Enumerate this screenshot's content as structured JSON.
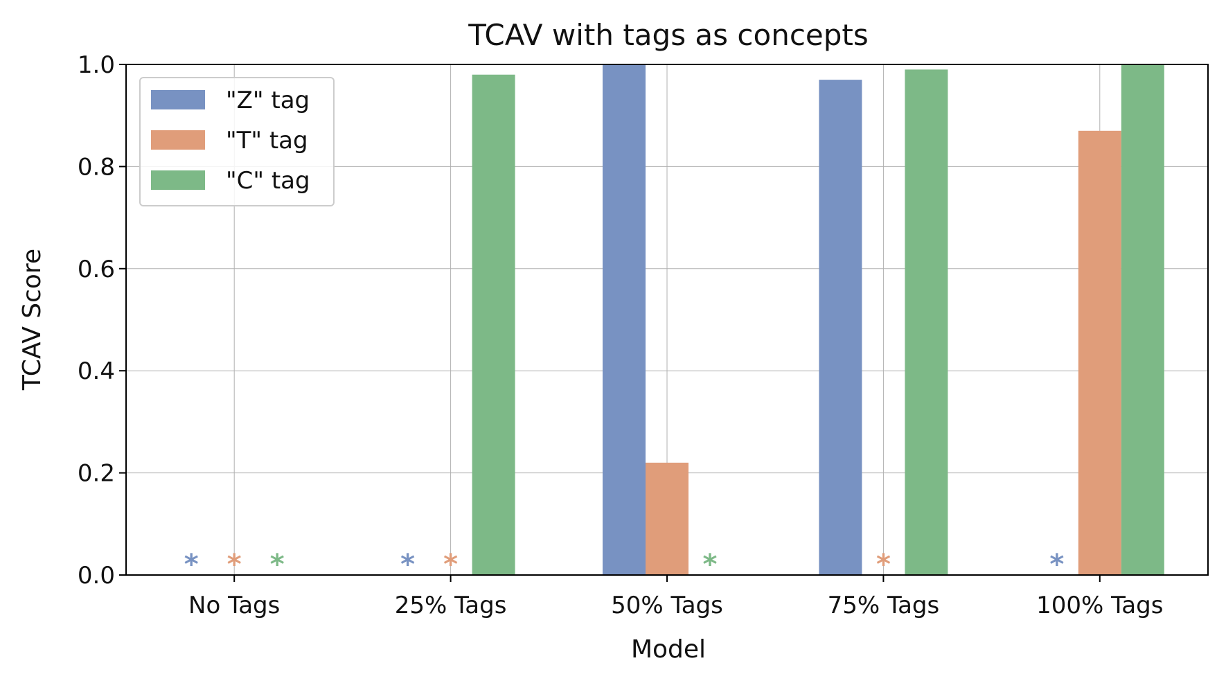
{
  "chart_data": {
    "type": "bar",
    "title": "TCAV with tags as concepts",
    "xlabel": "Model",
    "ylabel": "TCAV Score",
    "ylim": [
      0,
      1.0
    ],
    "yticks": [
      "0.0",
      "0.2",
      "0.4",
      "0.6",
      "0.8",
      "1.0"
    ],
    "grid": true,
    "legend": "top-left",
    "categories": [
      "No Tags",
      "25% Tags",
      "50% Tags",
      "75% Tags",
      "100% Tags"
    ],
    "series": [
      {
        "name": "\"Z\" tag",
        "color": "#7892c2",
        "values": [
          null,
          null,
          1.0,
          0.97,
          null
        ],
        "marker": "*"
      },
      {
        "name": "\"T\" tag",
        "color": "#e09d7a",
        "values": [
          null,
          null,
          0.22,
          null,
          0.87
        ],
        "marker": "*"
      },
      {
        "name": "\"C\" tag",
        "color": "#7db987",
        "values": [
          null,
          0.98,
          null,
          0.99,
          1.0
        ],
        "marker": "*"
      }
    ]
  }
}
